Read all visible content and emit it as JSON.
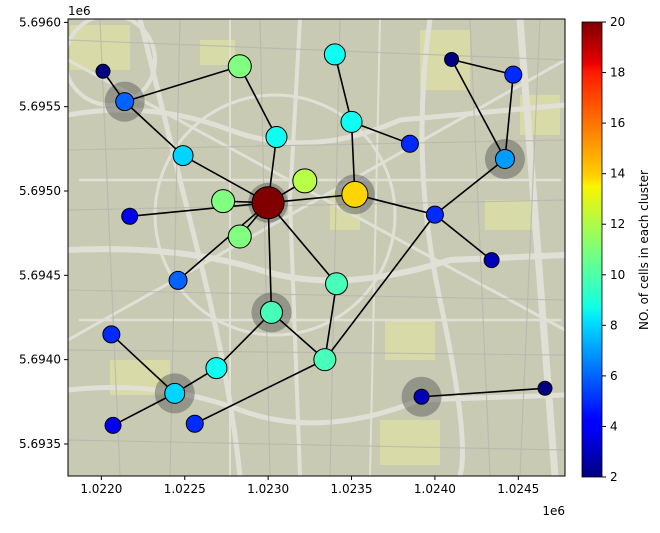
{
  "chart_data": {
    "type": "scatter",
    "title": "",
    "xlabel": "",
    "ylabel": "",
    "x_offset_label": "1e6",
    "y_offset_label": "1e6",
    "xlim": [
      1.0218,
      1.02478
    ],
    "ylim": [
      5.69331,
      5.69602
    ],
    "x_ticks": [
      1.022,
      1.0225,
      1.023,
      1.0235,
      1.024,
      1.0245
    ],
    "x_tick_labels": [
      "1.0220",
      "1.0225",
      "1.0230",
      "1.0235",
      "1.0240",
      "1.0245"
    ],
    "y_ticks": [
      5.6935,
      5.694,
      5.6945,
      5.695,
      5.6955,
      5.696
    ],
    "y_tick_labels": [
      "5.6935",
      "5.6940",
      "5.6945",
      "5.6950",
      "5.6955",
      "5.6960"
    ],
    "colorbar": {
      "label": "NO. of cells in each cluster",
      "colormap": "jet",
      "min": 2,
      "max": 20,
      "ticks": [
        2,
        4,
        6,
        8,
        10,
        12,
        14,
        16,
        18,
        20
      ]
    },
    "background": "street map",
    "nodes": [
      {
        "id": "n1",
        "x": 1.02201,
        "y": 5.69571,
        "value": 2,
        "hub": false
      },
      {
        "id": "n2",
        "x": 1.02214,
        "y": 5.69553,
        "value": 6,
        "hub": true
      },
      {
        "id": "n3",
        "x": 1.02283,
        "y": 5.69574,
        "value": 11,
        "hub": false
      },
      {
        "id": "n4",
        "x": 1.0234,
        "y": 5.69581,
        "value": 9,
        "hub": false
      },
      {
        "id": "n5",
        "x": 1.0241,
        "y": 5.69578,
        "value": 2,
        "hub": false
      },
      {
        "id": "n6",
        "x": 1.02447,
        "y": 5.69569,
        "value": 5,
        "hub": false
      },
      {
        "id": "n7",
        "x": 1.0235,
        "y": 5.69541,
        "value": 9,
        "hub": false
      },
      {
        "id": "n8",
        "x": 1.02305,
        "y": 5.69532,
        "value": 9,
        "hub": false
      },
      {
        "id": "n9",
        "x": 1.02385,
        "y": 5.69528,
        "value": 5,
        "hub": false
      },
      {
        "id": "n10",
        "x": 1.02249,
        "y": 5.69521,
        "value": 8,
        "hub": false
      },
      {
        "id": "n11",
        "x": 1.02442,
        "y": 5.69519,
        "value": 7,
        "hub": true
      },
      {
        "id": "n12",
        "x": 1.02322,
        "y": 5.69506,
        "value": 12,
        "hub": false
      },
      {
        "id": "n13",
        "x": 1.02352,
        "y": 5.69498,
        "value": 14,
        "hub": true
      },
      {
        "id": "n14",
        "x": 1.02273,
        "y": 5.69494,
        "value": 11,
        "hub": false
      },
      {
        "id": "n15",
        "x": 1.023,
        "y": 5.69493,
        "value": 20,
        "hub": true
      },
      {
        "id": "n16",
        "x": 1.02217,
        "y": 5.69485,
        "value": 4,
        "hub": false
      },
      {
        "id": "n17",
        "x": 1.024,
        "y": 5.69486,
        "value": 5,
        "hub": false
      },
      {
        "id": "n18",
        "x": 1.02283,
        "y": 5.69473,
        "value": 11,
        "hub": false
      },
      {
        "id": "n19",
        "x": 1.02434,
        "y": 5.69459,
        "value": 3,
        "hub": false
      },
      {
        "id": "n20",
        "x": 1.02246,
        "y": 5.69447,
        "value": 6,
        "hub": false
      },
      {
        "id": "n21",
        "x": 1.02341,
        "y": 5.69445,
        "value": 10,
        "hub": false
      },
      {
        "id": "n22",
        "x": 1.02302,
        "y": 5.69428,
        "value": 10,
        "hub": true
      },
      {
        "id": "n23",
        "x": 1.02206,
        "y": 5.69415,
        "value": 5,
        "hub": false
      },
      {
        "id": "n24",
        "x": 1.02334,
        "y": 5.694,
        "value": 10,
        "hub": false
      },
      {
        "id": "n25",
        "x": 1.02269,
        "y": 5.69395,
        "value": 9,
        "hub": false
      },
      {
        "id": "n26",
        "x": 1.02244,
        "y": 5.6938,
        "value": 8,
        "hub": true
      },
      {
        "id": "n27",
        "x": 1.02392,
        "y": 5.69378,
        "value": 3,
        "hub": true
      },
      {
        "id": "n28",
        "x": 1.02466,
        "y": 5.69383,
        "value": 2,
        "hub": false
      },
      {
        "id": "n29",
        "x": 1.02207,
        "y": 5.69361,
        "value": 4,
        "hub": false
      },
      {
        "id": "n30",
        "x": 1.02256,
        "y": 5.69362,
        "value": 5,
        "hub": false
      }
    ],
    "edges": [
      [
        "n1",
        "n2"
      ],
      [
        "n2",
        "n3"
      ],
      [
        "n2",
        "n10"
      ],
      [
        "n10",
        "n15"
      ],
      [
        "n3",
        "n8"
      ],
      [
        "n8",
        "n15"
      ],
      [
        "n4",
        "n7"
      ],
      [
        "n7",
        "n9"
      ],
      [
        "n7",
        "n13"
      ],
      [
        "n12",
        "n15"
      ],
      [
        "n13",
        "n15"
      ],
      [
        "n13",
        "n17"
      ],
      [
        "n14",
        "n15"
      ],
      [
        "n16",
        "n15"
      ],
      [
        "n18",
        "n15"
      ],
      [
        "n20",
        "n15"
      ],
      [
        "n15",
        "n22"
      ],
      [
        "n15",
        "n21"
      ],
      [
        "n17",
        "n11"
      ],
      [
        "n17",
        "n19"
      ],
      [
        "n17",
        "n24"
      ],
      [
        "n11",
        "n5"
      ],
      [
        "n11",
        "n6"
      ],
      [
        "n5",
        "n6"
      ],
      [
        "n21",
        "n24"
      ],
      [
        "n22",
        "n25"
      ],
      [
        "n22",
        "n24"
      ],
      [
        "n25",
        "n26"
      ],
      [
        "n26",
        "n23"
      ],
      [
        "n26",
        "n29"
      ],
      [
        "n24",
        "n30"
      ],
      [
        "n27",
        "n28"
      ]
    ]
  }
}
